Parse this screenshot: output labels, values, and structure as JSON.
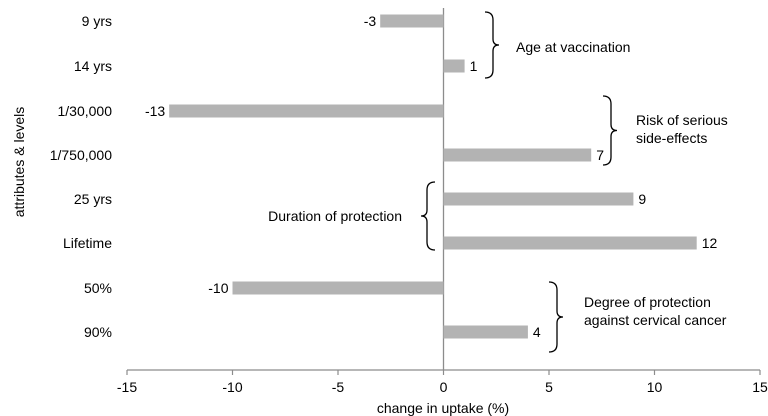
{
  "chart_data": {
    "type": "bar",
    "orientation": "horizontal",
    "title": "",
    "xlabel": "change in uptake (%)",
    "ylabel": "attributes & levels",
    "xlim": [
      -15,
      15
    ],
    "x_ticks": [
      "-15",
      "-10",
      "-5",
      "0",
      "5",
      "10",
      "15"
    ],
    "grid": false,
    "bar_color": "#b3b3b3",
    "categories": [
      "9 yrs",
      "14 yrs",
      "1/30,000",
      "1/750,000",
      "25 yrs",
      "Lifetime",
      "50%",
      "90%"
    ],
    "values": [
      -3,
      1,
      -13,
      7,
      9,
      12,
      -10,
      4
    ],
    "value_labels": [
      "-3",
      "1",
      "-13",
      "7",
      "9",
      "12",
      "-10",
      "4"
    ],
    "groups": [
      {
        "label_lines": [
          "Age at vaccination"
        ],
        "categories": [
          "9 yrs",
          "14 yrs"
        ],
        "brace_side": "right"
      },
      {
        "label_lines": [
          "Risk of serious",
          "side-effects"
        ],
        "categories": [
          "1/30,000",
          "1/750,000"
        ],
        "brace_side": "right"
      },
      {
        "label_lines": [
          "Duration of protection"
        ],
        "categories": [
          "25 yrs",
          "Lifetime"
        ],
        "brace_side": "left"
      },
      {
        "label_lines": [
          "Degree of protection",
          "against cervical cancer"
        ],
        "categories": [
          "50%",
          "90%"
        ],
        "brace_side": "right"
      }
    ]
  }
}
